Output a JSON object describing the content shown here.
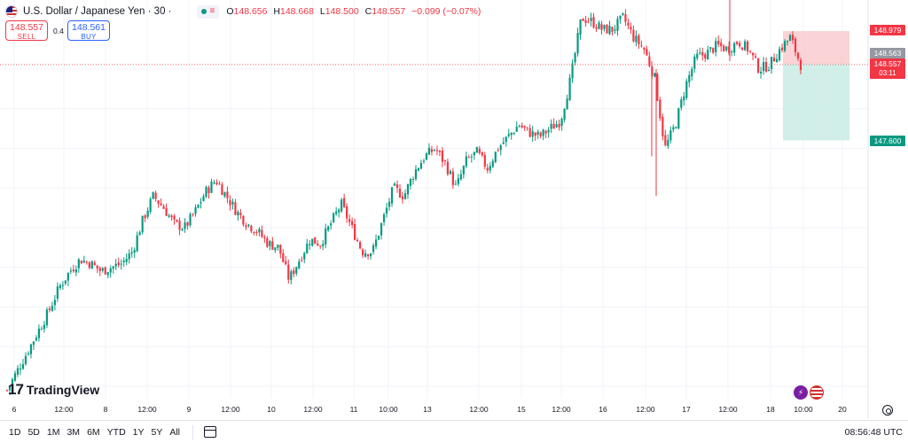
{
  "header": {
    "symbol": "U.S. Dollar / Japanese Yen · 30 ·",
    "ohlc": {
      "o_label": "O",
      "o": "148.656",
      "h_label": "H",
      "h": "148.668",
      "l_label": "L",
      "l": "148.500",
      "c_label": "C",
      "c": "148.557",
      "change": "−0.099 (−0.07%)"
    }
  },
  "trade": {
    "sell_price": "148.557",
    "sell_label": "SELL",
    "spread": "0.4",
    "buy_price": "148.561",
    "buy_label": "BUY"
  },
  "price_labels": {
    "take_profit": "148.979",
    "current": "148.563",
    "last": "148.557",
    "timer": "03:11",
    "stop_loss": "147.600"
  },
  "logo": {
    "text": "TradingView"
  },
  "toolbar": {
    "timeframes": [
      "1D",
      "5D",
      "1M",
      "3M",
      "6M",
      "YTD",
      "1Y",
      "5Y",
      "All"
    ],
    "clock": "08:56:48 UTC"
  },
  "icons": [
    "flag-icon",
    "calendar-range-icon",
    "settings-gear-icon",
    "lightning-icon",
    "us-flag-icon"
  ],
  "colors": {
    "up": "#089981",
    "down": "#f23645",
    "take_profit_zone": "#f7c4c7",
    "stop_loss_zone": "#c9ebe4",
    "grid": "#f0f3fa"
  },
  "chart_data": {
    "type": "candlestick",
    "y_axis": {
      "ticks": [
        "144.500",
        "145.000",
        "145.500",
        "146.000",
        "146.500",
        "147.000",
        "147.500",
        "148.000",
        "148.500"
      ],
      "range": [
        144.3,
        149.4
      ]
    },
    "x_axis": {
      "ticks": [
        "6",
        "12:00",
        "8",
        "12:00",
        "9",
        "12:00",
        "10",
        "12:00",
        "11",
        "10:00",
        "13",
        "12:00",
        "15",
        "12:00",
        "16",
        "12:00",
        "17",
        "12:00",
        "18",
        "10:00",
        "20"
      ]
    },
    "series": [
      {
        "name": "USDJPY",
        "close_path": [
          144.45,
          144.7,
          144.95,
          145.2,
          145.45,
          145.75,
          145.95,
          146.1,
          146.05,
          145.95,
          146.0,
          146.05,
          146.2,
          146.6,
          146.9,
          146.75,
          146.55,
          146.5,
          146.7,
          146.95,
          147.1,
          146.9,
          146.7,
          146.55,
          146.45,
          146.3,
          146.25,
          145.85,
          146.1,
          146.35,
          146.3,
          146.55,
          146.8,
          146.5,
          146.2,
          146.2,
          146.6,
          147.0,
          146.9,
          147.2,
          147.4,
          147.5,
          147.3,
          147.0,
          147.35,
          147.45,
          147.25,
          147.5,
          147.65,
          147.8,
          147.7,
          147.65,
          147.75,
          147.85,
          148.4,
          149.15,
          149.1,
          149.0,
          149.0,
          149.15,
          148.9,
          148.75,
          148.4,
          147.5,
          147.8,
          148.3,
          148.65,
          148.7,
          148.8,
          148.75,
          148.85,
          148.75,
          148.5,
          148.55,
          148.75,
          148.9,
          148.557
        ]
      }
    ],
    "position": {
      "type": "long",
      "entry": 148.563,
      "take_profit": 148.979,
      "stop_loss": 147.6
    },
    "last_price": 148.557,
    "grid": true
  }
}
